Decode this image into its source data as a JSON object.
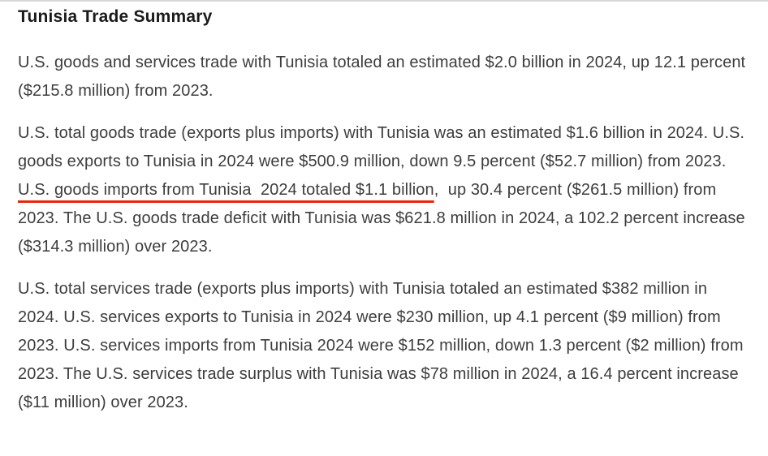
{
  "page": {
    "title": "Tunisia Trade Summary",
    "paragraphs": {
      "goods_and_services": "U.S. goods and services trade with Tunisia totaled an estimated $2.0 billion in 2024, up 12.1 percent ($215.8 million) from 2023.",
      "goods": {
        "before_highlight": "U.S. total goods trade (exports plus imports) with Tunisia was an estimated $1.6 billion in 2024. U.S. goods exports to Tunisia in 2024 were $500.9 million, down 9.5 percent ($52.7 million) from 2023. ",
        "highlighted": "U.S. goods imports from Tunisia  2024 totaled $1.1 billion",
        "after_highlight": ",  up 30.4 percent ($261.5 million) from 2023. The U.S. goods trade deficit with Tunisia was $621.8 million in 2024, a 102.2 percent increase ($314.3 million) over 2023."
      },
      "services": "U.S. total services trade (exports plus imports) with Tunisia totaled an estimated $382 million in 2024. U.S. services exports to Tunisia in 2024 were $230 million, up 4.1 percent ($9 million) from 2023. U.S. services imports from Tunisia 2024 were $152 million, down 1.3 percent ($2 million) from 2023. The U.S. services trade surplus with Tunisia was $78 million in 2024, a 16.4 percent increase ($11 million) over 2023."
    },
    "colors": {
      "underline_accent": "#e8250e",
      "heading_text": "#1a1a1a",
      "body_text": "#3d3d3d",
      "top_border": "#d8d8d8"
    }
  }
}
